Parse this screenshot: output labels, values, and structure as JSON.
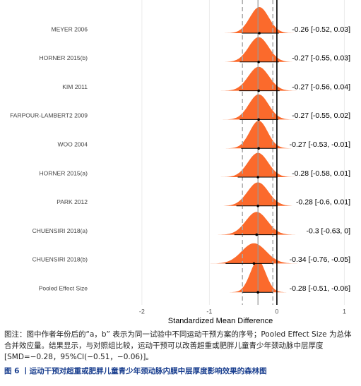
{
  "chart_data": {
    "type": "forest",
    "x_label": "Standardized Mean Difference",
    "categories": [
      "MEYER 2006",
      "HORNER 2015(b)",
      "KIM 2011",
      "FARPOUR-LAMBERT2 2009",
      "WOO 2004",
      "HORNER 2015(a)",
      "PARK 2012",
      "CHUENSIRI 2018(a)",
      "CHUENSIRI 2018(b)",
      "Pooled Effect Size"
    ],
    "values": [
      -0.26,
      -0.27,
      -0.27,
      -0.27,
      -0.27,
      -0.28,
      -0.28,
      -0.3,
      -0.34,
      -0.28
    ],
    "ci_lower": [
      -0.52,
      -0.55,
      -0.56,
      -0.55,
      -0.53,
      -0.58,
      -0.6,
      -0.63,
      -0.76,
      -0.51
    ],
    "ci_upper": [
      0.03,
      0.03,
      0.04,
      0.02,
      -0.01,
      0.01,
      0.01,
      0,
      -0.05,
      -0.06
    ],
    "value_labels": [
      "-0.26 [-0.52, 0.03]",
      "-0.27 [-0.55, 0.03]",
      "-0.27 [-0.56, 0.04]",
      "-0.27 [-0.55, 0.02]",
      "-0.27 [-0.53, -0.01]",
      "-0.28 [-0.58, 0.01]",
      "-0.28 [-0.6, 0.01]",
      "-0.3 [-0.63, 0]",
      "-0.34 [-0.76, -0.05]",
      "-0.28 [-0.51, -0.06]"
    ],
    "xlim": [
      -2.7,
      1.1
    ],
    "xticks": [
      -2,
      -1,
      0,
      1
    ],
    "grid": true,
    "color": "#fb6a2c"
  },
  "caption": "图注：图中作者年份后的“a，b” 表示为同一试验中不同运动干预方案的序号；Pooled Effect Size 为总体合并效应量。结果显示，与对照组比较，运动干预可以改善超重或肥胖儿童青少年颈动脉中层厚度 [SMD=−0.28，95%CI(−0.51，−0.06)]。",
  "figure_title": "图 6 丨运动干预对超重或肥胖儿童青少年颈动脉内膜中层厚度影响效果的森林图"
}
